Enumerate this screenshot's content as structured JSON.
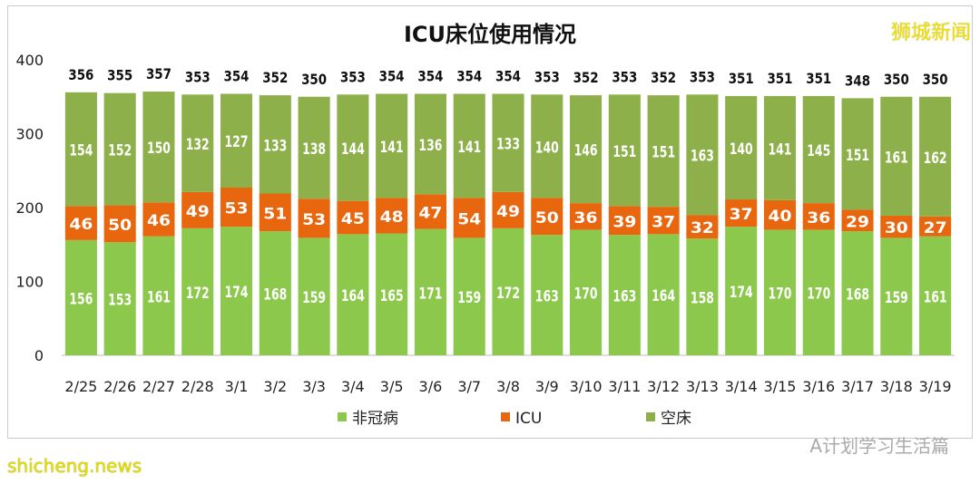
{
  "chart_data": {
    "type": "bar",
    "stacked": true,
    "title": "ICU床位使用情况",
    "categories": [
      "2/25",
      "2/26",
      "2/27",
      "2/28",
      "3/1",
      "3/2",
      "3/3",
      "3/4",
      "3/5",
      "3/6",
      "3/7",
      "3/8",
      "3/9",
      "3/10",
      "3/11",
      "3/12",
      "3/13",
      "3/14",
      "3/15",
      "3/16",
      "3/17",
      "3/18",
      "3/19"
    ],
    "series": [
      {
        "name": "非冠病",
        "color": "#8cc84b",
        "values": [
          156,
          153,
          161,
          172,
          174,
          168,
          159,
          164,
          165,
          171,
          159,
          172,
          163,
          170,
          163,
          164,
          158,
          174,
          170,
          170,
          168,
          159,
          161
        ]
      },
      {
        "name": "ICU",
        "color": "#e8660e",
        "values": [
          46,
          50,
          46,
          49,
          53,
          51,
          53,
          45,
          48,
          47,
          54,
          49,
          50,
          36,
          39,
          37,
          32,
          37,
          40,
          36,
          29,
          30,
          27
        ]
      },
      {
        "name": "空床",
        "color": "#8db04a",
        "values": [
          154,
          152,
          150,
          132,
          127,
          133,
          138,
          144,
          141,
          136,
          141,
          133,
          140,
          146,
          151,
          151,
          163,
          140,
          141,
          145,
          151,
          161,
          162
        ]
      }
    ],
    "totals": [
      356,
      355,
      357,
      353,
      354,
      352,
      350,
      353,
      354,
      354,
      354,
      354,
      353,
      352,
      353,
      352,
      353,
      351,
      351,
      351,
      348,
      350,
      350
    ],
    "yticks": [
      0,
      100,
      200,
      300,
      400
    ],
    "ylim": [
      0,
      400
    ],
    "grid": false,
    "legend": "bottom"
  },
  "watermarks": {
    "top_right": "狮城新闻",
    "bottom_left": "shicheng.news",
    "bottom_right": "A计划学习生活篇"
  }
}
